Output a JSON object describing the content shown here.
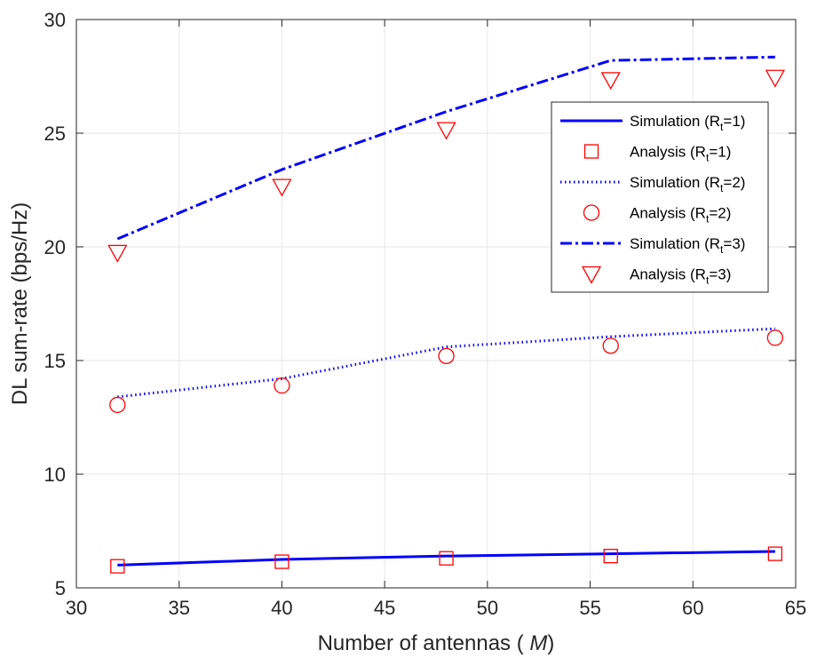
{
  "chart_data": {
    "type": "line",
    "title": "",
    "xlabel": "Number of antennas ( M)",
    "xlabel_prefix": "Number of antennas ( ",
    "xlabel_var": "M",
    "xlabel_suffix": ")",
    "ylabel": "DL sum-rate (bps/Hz)",
    "xlim": [
      30,
      65
    ],
    "ylim": [
      5,
      30
    ],
    "xticks": [
      30,
      35,
      40,
      45,
      50,
      55,
      60,
      65
    ],
    "yticks": [
      5,
      10,
      15,
      20,
      25,
      30
    ],
    "grid": true,
    "legend_position": "top-right",
    "x": [
      32,
      40,
      48,
      56,
      64
    ],
    "series": [
      {
        "name": "Simulation (Rt=1)",
        "legend_main": "Simulation (R",
        "legend_sub": "t",
        "legend_tail": "=1)",
        "style": "line",
        "dash": "solid",
        "color": "#0000ff",
        "values": [
          6.0,
          6.25,
          6.4,
          6.5,
          6.6
        ]
      },
      {
        "name": "Analysis (Rt=1)",
        "legend_main": "Analysis (R",
        "legend_sub": "t",
        "legend_tail": "=1)",
        "style": "marker",
        "marker": "square",
        "color": "#ff0000",
        "values": [
          5.95,
          6.15,
          6.3,
          6.4,
          6.5
        ]
      },
      {
        "name": "Simulation (Rt=2)",
        "legend_main": "Simulation (R",
        "legend_sub": "t",
        "legend_tail": "=2)",
        "style": "line",
        "dash": "dotted",
        "color": "#0000ff",
        "values": [
          13.4,
          14.2,
          15.6,
          16.05,
          16.4
        ]
      },
      {
        "name": "Analysis (Rt=2)",
        "legend_main": "Analysis (R",
        "legend_sub": "t",
        "legend_tail": "=2)",
        "style": "marker",
        "marker": "circle",
        "color": "#ff0000",
        "values": [
          13.05,
          13.9,
          15.2,
          15.65,
          16.0
        ]
      },
      {
        "name": "Simulation (Rt=3)",
        "legend_main": "Simulation (R",
        "legend_sub": "t",
        "legend_tail": "=3)",
        "style": "line",
        "dash": "dashdot",
        "color": "#0000ff",
        "values": [
          20.35,
          23.4,
          25.95,
          28.2,
          28.35
        ]
      },
      {
        "name": "Analysis (Rt=3)",
        "legend_main": "Analysis (R",
        "legend_sub": "t",
        "legend_tail": "=3)",
        "style": "marker",
        "marker": "triangle-down",
        "color": "#ff0000",
        "values": [
          19.75,
          22.65,
          25.15,
          27.35,
          27.45
        ]
      }
    ]
  }
}
